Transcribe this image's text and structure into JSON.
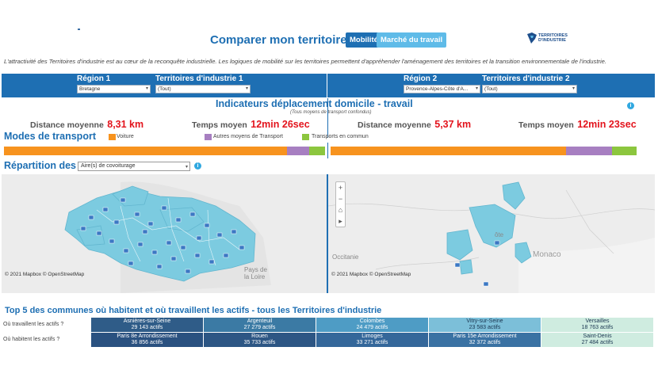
{
  "header": {
    "title": "Comparer mon territoire",
    "tab_active": "Mobilité",
    "tab_inactive": "Marché du travail",
    "logo_text": "TERRITOIRES\nD'INDUSTRIE"
  },
  "intro": "L'attractivité des Territoires d'industrie est au cœur de la reconquête industrielle. Les logiques de mobilité sur les territoires permettent d'appréhender l'aménagement des territoires et la transition environnementale de l'industrie.",
  "selection": {
    "region1_label": "Région 1",
    "region1_value": "Bretagne",
    "ti1_label": "Territoires d'industrie 1",
    "ti1_value": "(Tout)",
    "region2_label": "Région 2",
    "region2_value": "Provence-Alpes-Côte d'A...",
    "ti2_label": "Territoires d'industrie 2",
    "ti2_value": "(Tout)"
  },
  "indicators": {
    "title": "Indicateurs déplacement domicile - travail",
    "subtitle": "(Tous moyens de transport confondus)",
    "left": {
      "distance_label": "Distance moyenne",
      "distance_value": "8,31 km",
      "time_label": "Temps moyen",
      "time_value": "12min 26sec"
    },
    "right": {
      "distance_label": "Distance moyenne",
      "distance_value": "5,37 km",
      "time_label": "Temps moyen",
      "time_value": "12min 23sec"
    }
  },
  "modes": {
    "title": "Modes de transport",
    "legend": [
      {
        "label": "Voiture",
        "color": "#f7931e"
      },
      {
        "label": "Autres moyens de Transport",
        "color": "#a77fc1"
      },
      {
        "label": "Transports en commun",
        "color": "#8cc63e"
      }
    ],
    "left_shares": [
      0.882,
      0.068,
      0.05
    ],
    "right_shares": [
      0.77,
      0.15,
      0.08
    ]
  },
  "repartition": {
    "title": "Répartition des",
    "dropdown_value": "Aire(s) de covoiturage"
  },
  "maps": {
    "left_credit": "© 2021 Mapbox  © OpenStreetMap",
    "right_credit": "© 2021 Mapbox  © OpenStreetMap",
    "left_label": "Pays de\nla Loire",
    "right_label_occitanie": "Occitanie",
    "right_label_monaco": "Monaco",
    "right_label_cote": "ôte",
    "ctrl_zoom_in": "+",
    "ctrl_zoom_out": "−",
    "ctrl_home": "⌂",
    "ctrl_play": "▸"
  },
  "top5": {
    "title": "Top 5 des communes où habitent et où travaillent les actifs - tous les Territoires d'industrie",
    "work_label": "Où travaillent les actifs ?",
    "live_label": "Où habitent les actifs ?",
    "work": [
      {
        "name": "Asnières-sur-Seine",
        "value": "29 143 actifs",
        "color": "#2f5c88",
        "text": "#ffffff"
      },
      {
        "name": "Argenteuil",
        "value": "27 279 actifs",
        "color": "#3b7aa4",
        "text": "#ffffff"
      },
      {
        "name": "Colombes",
        "value": "24 479 actifs",
        "color": "#4e9cc5",
        "text": "#ffffff"
      },
      {
        "name": "Vitry-sur-Seine",
        "value": "23 583 actifs",
        "color": "#7cbfd9",
        "text": "#1a3550"
      },
      {
        "name": "Versailles",
        "value": "18 763 actifs",
        "color": "#cfece0",
        "text": "#1a3550"
      }
    ],
    "live": [
      {
        "name": "Paris 8e Arrondissement",
        "value": "36 856 actifs",
        "color": "#2a5180",
        "text": "#ffffff"
      },
      {
        "name": "Rouen",
        "value": "35 733 actifs",
        "color": "#2d5684",
        "text": "#ffffff"
      },
      {
        "name": "Limoges",
        "value": "33 271 actifs",
        "color": "#34679a",
        "text": "#ffffff"
      },
      {
        "name": "Paris 15e Arrondissement",
        "value": "32 372 actifs",
        "color": "#3a72a3",
        "text": "#ffffff"
      },
      {
        "name": "Saint-Denis",
        "value": "27 484 actifs",
        "color": "#cfece0",
        "text": "#1a3550"
      }
    ]
  }
}
